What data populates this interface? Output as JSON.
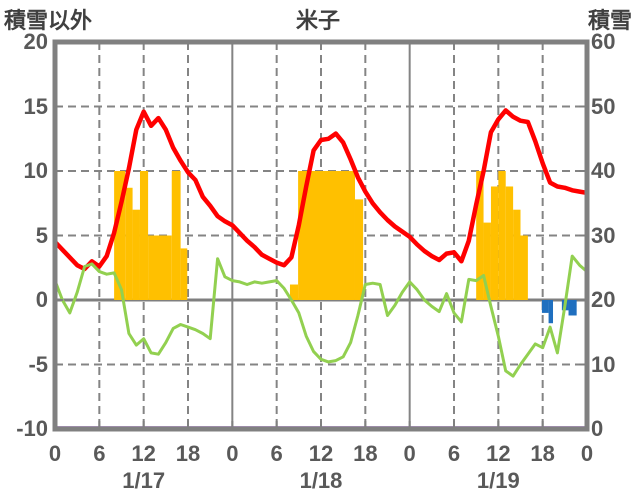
{
  "header": {
    "left_axis_title": "積雪以外",
    "title": "米子",
    "right_axis_title": "積雪"
  },
  "colors": {
    "background": "#ffffff",
    "border": "#808080",
    "grid": "#848484",
    "zero_line": "#7f7f7f",
    "text": "#595959",
    "title_text": "#404040",
    "red_line": "#ff0000",
    "green_line": "#92d050",
    "orange_bar": "#ffc000",
    "blue_bar": "#1f6fbf",
    "purple_line": "#7030a0"
  },
  "chart_data": {
    "type": "line",
    "title": "米子",
    "left_axis": {
      "title": "積雪以外",
      "min": -10,
      "max": 20,
      "tick_labels": [
        "20",
        "15",
        "10",
        "5",
        "0",
        "-5",
        "-10"
      ],
      "tick_values": [
        20,
        15,
        10,
        5,
        0,
        -5,
        -10
      ]
    },
    "right_axis": {
      "title": "積雪",
      "min": 0,
      "max": 60,
      "tick_labels": [
        "60",
        "50",
        "40",
        "30",
        "20",
        "10",
        "0"
      ],
      "tick_values": [
        60,
        50,
        40,
        30,
        20,
        10,
        0
      ]
    },
    "x_axis": {
      "total_hours": 72,
      "tick_hours": [
        0,
        6,
        12,
        18,
        24,
        30,
        36,
        42,
        48,
        54,
        60,
        66,
        72
      ],
      "tick_labels": [
        "0",
        "6",
        "12",
        "18",
        "0",
        "6",
        "12",
        "18",
        "0",
        "6",
        "12",
        "18",
        "0"
      ],
      "date_labels": [
        {
          "label": "1/17",
          "center_hour": 12
        },
        {
          "label": "1/18",
          "center_hour": 36
        },
        {
          "label": "1/19",
          "center_hour": 60
        }
      ],
      "solid_hours": [
        24,
        48
      ],
      "dashed_hours": [
        6,
        12,
        18,
        30,
        36,
        42,
        54,
        60,
        66
      ]
    },
    "grid": {
      "dashed_values": [
        15,
        10,
        5,
        -5
      ],
      "zero_line_value": 0
    },
    "series": [
      {
        "name": "sunshine-bars",
        "type": "bar",
        "color": "#ffc000",
        "axis": "left",
        "bars": [
          [
            8,
            9.5,
            10
          ],
          [
            9.5,
            10.5,
            8.7
          ],
          [
            10.5,
            11.5,
            7
          ],
          [
            11.5,
            12.6,
            10
          ],
          [
            12.6,
            15.8,
            5
          ],
          [
            15.8,
            17,
            10
          ],
          [
            17,
            17.9,
            4
          ],
          [
            31.8,
            32.9,
            1.2
          ],
          [
            32.9,
            40.6,
            10
          ],
          [
            40.6,
            41.7,
            7.8
          ],
          [
            57,
            58,
            10
          ],
          [
            58,
            59,
            6
          ],
          [
            59,
            60,
            8.8
          ],
          [
            60,
            61,
            10
          ],
          [
            61,
            62,
            8.8
          ],
          [
            62,
            63,
            7
          ],
          [
            63,
            64,
            5
          ]
        ]
      },
      {
        "name": "precipitation-bars",
        "type": "bar",
        "color": "#1f6fbf",
        "axis": "left",
        "bars": [
          [
            65.9,
            66.8,
            -1.0
          ],
          [
            66.8,
            67.4,
            -1.8
          ],
          [
            68.6,
            69.5,
            -0.8
          ],
          [
            69.5,
            70.6,
            -1.2
          ]
        ]
      },
      {
        "name": "temperature-line",
        "type": "line",
        "color": "#ff0000",
        "width": 4.5,
        "axis": "left",
        "points": [
          [
            0,
            4.5
          ],
          [
            1,
            3.9
          ],
          [
            2,
            3.3
          ],
          [
            3,
            2.7
          ],
          [
            4,
            2.4
          ],
          [
            5,
            3.0
          ],
          [
            6,
            2.6
          ],
          [
            7,
            3.4
          ],
          [
            8,
            5.2
          ],
          [
            9,
            7.6
          ],
          [
            10,
            10.2
          ],
          [
            11,
            13.2
          ],
          [
            12,
            14.6
          ],
          [
            13,
            13.5
          ],
          [
            14,
            14.1
          ],
          [
            15,
            13.2
          ],
          [
            16,
            11.8
          ],
          [
            17,
            10.8
          ],
          [
            18,
            9.9
          ],
          [
            19,
            9.3
          ],
          [
            20,
            8.0
          ],
          [
            21,
            7.3
          ],
          [
            22,
            6.5
          ],
          [
            23,
            6.1
          ],
          [
            24,
            5.8
          ],
          [
            25,
            5.2
          ],
          [
            26,
            4.6
          ],
          [
            27,
            4.1
          ],
          [
            28,
            3.5
          ],
          [
            29,
            3.2
          ],
          [
            30,
            2.9
          ],
          [
            31,
            2.7
          ],
          [
            32,
            3.3
          ],
          [
            33,
            5.8
          ],
          [
            34,
            8.8
          ],
          [
            35,
            11.6
          ],
          [
            36,
            12.4
          ],
          [
            37,
            12.5
          ],
          [
            38,
            12.9
          ],
          [
            39,
            12.2
          ],
          [
            40,
            10.9
          ],
          [
            41,
            9.5
          ],
          [
            42,
            8.4
          ],
          [
            43,
            7.5
          ],
          [
            44,
            6.8
          ],
          [
            45,
            6.2
          ],
          [
            46,
            5.7
          ],
          [
            47,
            5.3
          ],
          [
            48,
            4.9
          ],
          [
            49,
            4.3
          ],
          [
            50,
            3.8
          ],
          [
            51,
            3.4
          ],
          [
            52,
            3.1
          ],
          [
            53,
            3.6
          ],
          [
            54,
            3.7
          ],
          [
            55,
            3.0
          ],
          [
            56,
            4.6
          ],
          [
            57,
            7.4
          ],
          [
            58,
            10.0
          ],
          [
            59,
            13.0
          ],
          [
            60,
            14.0
          ],
          [
            61,
            14.7
          ],
          [
            62,
            14.2
          ],
          [
            63,
            13.9
          ],
          [
            64,
            13.8
          ],
          [
            65,
            12.3
          ],
          [
            66,
            10.6
          ],
          [
            67,
            9.1
          ],
          [
            68,
            8.8
          ],
          [
            69,
            8.7
          ],
          [
            70,
            8.5
          ],
          [
            71,
            8.4
          ],
          [
            72,
            8.3
          ]
        ]
      },
      {
        "name": "green-line",
        "type": "line",
        "color": "#92d050",
        "width": 3,
        "axis": "left",
        "points": [
          [
            0,
            1.5
          ],
          [
            1,
            0.0
          ],
          [
            2,
            -1.0
          ],
          [
            3,
            0.6
          ],
          [
            4,
            2.6
          ],
          [
            5,
            2.8
          ],
          [
            6,
            2.2
          ],
          [
            7,
            2.0
          ],
          [
            8,
            2.1
          ],
          [
            9,
            0.8
          ],
          [
            10,
            -2.6
          ],
          [
            11,
            -3.5
          ],
          [
            12,
            -3.0
          ],
          [
            13,
            -4.1
          ],
          [
            14,
            -4.2
          ],
          [
            15,
            -3.3
          ],
          [
            16,
            -2.2
          ],
          [
            17,
            -1.9
          ],
          [
            18,
            -2.1
          ],
          [
            19,
            -2.3
          ],
          [
            20,
            -2.6
          ],
          [
            21,
            -3.0
          ],
          [
            22,
            3.2
          ],
          [
            23,
            1.8
          ],
          [
            24,
            1.5
          ],
          [
            25,
            1.4
          ],
          [
            26,
            1.2
          ],
          [
            27,
            1.4
          ],
          [
            28,
            1.3
          ],
          [
            29,
            1.4
          ],
          [
            30,
            1.5
          ],
          [
            31,
            0.9
          ],
          [
            32,
            0.0
          ],
          [
            33,
            -1.0
          ],
          [
            34,
            -2.8
          ],
          [
            35,
            -4.0
          ],
          [
            36,
            -4.6
          ],
          [
            37,
            -4.8
          ],
          [
            38,
            -4.7
          ],
          [
            39,
            -4.4
          ],
          [
            40,
            -3.3
          ],
          [
            41,
            -1.2
          ],
          [
            42,
            1.2
          ],
          [
            43,
            1.3
          ],
          [
            44,
            1.2
          ],
          [
            45,
            -1.2
          ],
          [
            46,
            -0.4
          ],
          [
            47,
            0.6
          ],
          [
            48,
            1.4
          ],
          [
            49,
            0.8
          ],
          [
            50,
            0.0
          ],
          [
            51,
            -0.5
          ],
          [
            52,
            -0.9
          ],
          [
            53,
            0.5
          ],
          [
            54,
            -1.0
          ],
          [
            55,
            -1.7
          ],
          [
            56,
            1.6
          ],
          [
            57,
            1.5
          ],
          [
            58,
            1.9
          ],
          [
            59,
            -0.5
          ],
          [
            60,
            -2.8
          ],
          [
            61,
            -5.5
          ],
          [
            62,
            -5.9
          ],
          [
            63,
            -5.0
          ],
          [
            64,
            -4.2
          ],
          [
            65,
            -3.4
          ],
          [
            66,
            -3.7
          ],
          [
            67,
            -2.1
          ],
          [
            68,
            -4.1
          ],
          [
            69,
            -0.5
          ],
          [
            70,
            3.4
          ],
          [
            71,
            2.7
          ],
          [
            72,
            2.2
          ]
        ]
      },
      {
        "name": "snow-depth-line",
        "type": "constant-line",
        "color": "#7030a0",
        "width": 2.5,
        "axis": "right",
        "value": 0
      }
    ]
  }
}
